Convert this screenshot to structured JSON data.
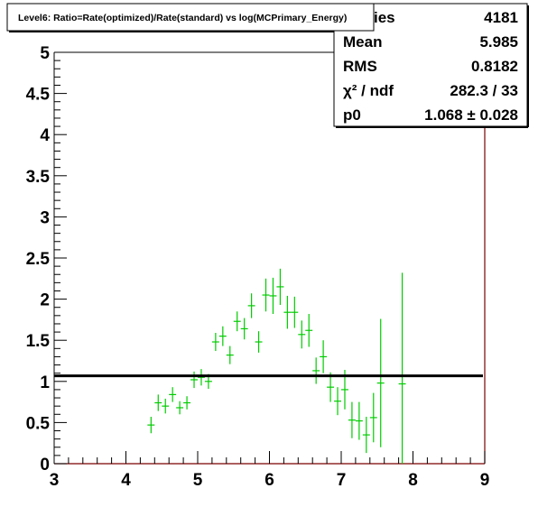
{
  "chart_data": {
    "type": "scatter",
    "title": "Level6:  Ratio=Rate(optimized)/Rate(standard) vs log(MCPrimary_Energy)",
    "xlabel": "",
    "ylabel": "",
    "xlim": [
      3,
      9
    ],
    "ylim": [
      0,
      5
    ],
    "x_ticks": [
      "3",
      "4",
      "5",
      "6",
      "7",
      "8",
      "9"
    ],
    "y_ticks": [
      "0",
      "0.5",
      "1",
      "1.5",
      "2",
      "2.5",
      "3",
      "3.5",
      "4",
      "4.5",
      "5"
    ],
    "grid": false,
    "marker_color": "#00cc00",
    "fit_line": {
      "value": 1.068,
      "color": "#000000"
    },
    "points": [
      {
        "x": 4.35,
        "y": 0.47,
        "err": 0.1
      },
      {
        "x": 4.45,
        "y": 0.74,
        "err": 0.1
      },
      {
        "x": 4.55,
        "y": 0.7,
        "err": 0.09
      },
      {
        "x": 4.65,
        "y": 0.84,
        "err": 0.09
      },
      {
        "x": 4.75,
        "y": 0.68,
        "err": 0.08
      },
      {
        "x": 4.85,
        "y": 0.74,
        "err": 0.08
      },
      {
        "x": 4.95,
        "y": 1.02,
        "err": 0.1
      },
      {
        "x": 5.05,
        "y": 1.05,
        "err": 0.1
      },
      {
        "x": 5.15,
        "y": 1.0,
        "err": 0.09
      },
      {
        "x": 5.25,
        "y": 1.48,
        "err": 0.11
      },
      {
        "x": 5.35,
        "y": 1.55,
        "err": 0.12
      },
      {
        "x": 5.45,
        "y": 1.32,
        "err": 0.11
      },
      {
        "x": 5.55,
        "y": 1.73,
        "err": 0.12
      },
      {
        "x": 5.65,
        "y": 1.64,
        "err": 0.13
      },
      {
        "x": 5.75,
        "y": 1.92,
        "err": 0.15
      },
      {
        "x": 5.85,
        "y": 1.48,
        "err": 0.13
      },
      {
        "x": 5.95,
        "y": 2.05,
        "err": 0.2
      },
      {
        "x": 6.05,
        "y": 2.04,
        "err": 0.22
      },
      {
        "x": 6.15,
        "y": 2.15,
        "err": 0.22
      },
      {
        "x": 6.25,
        "y": 1.84,
        "err": 0.2
      },
      {
        "x": 6.35,
        "y": 1.84,
        "err": 0.19
      },
      {
        "x": 6.45,
        "y": 1.57,
        "err": 0.17
      },
      {
        "x": 6.55,
        "y": 1.62,
        "err": 0.2
      },
      {
        "x": 6.65,
        "y": 1.13,
        "err": 0.16
      },
      {
        "x": 6.75,
        "y": 1.3,
        "err": 0.2
      },
      {
        "x": 6.85,
        "y": 0.93,
        "err": 0.18
      },
      {
        "x": 6.95,
        "y": 0.76,
        "err": 0.17
      },
      {
        "x": 7.05,
        "y": 0.9,
        "err": 0.24
      },
      {
        "x": 7.15,
        "y": 0.53,
        "err": 0.22
      },
      {
        "x": 7.25,
        "y": 0.52,
        "err": 0.23
      },
      {
        "x": 7.35,
        "y": 0.35,
        "err": 0.22
      },
      {
        "x": 7.45,
        "y": 0.56,
        "err": 0.3
      },
      {
        "x": 7.55,
        "y": 0.98,
        "err": 0.78
      },
      {
        "x": 7.85,
        "y": 0.97,
        "err": 1.35
      }
    ],
    "stats_box": [
      {
        "label": "Entries",
        "value": "4181"
      },
      {
        "label": "Mean",
        "value": "5.985"
      },
      {
        "label": "RMS",
        "value": "0.8182"
      },
      {
        "label": "χ² / ndf",
        "value": "282.3 / 33"
      },
      {
        "label": "p0",
        "value": "1.068 ± 0.028"
      }
    ]
  }
}
